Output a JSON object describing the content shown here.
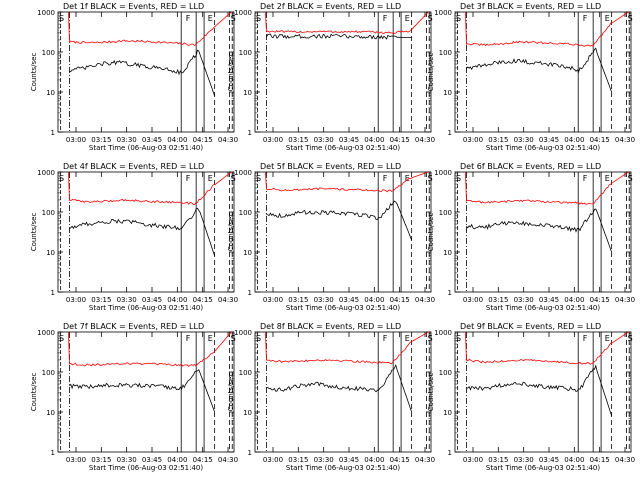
{
  "chart_data": [
    {
      "type": "line",
      "title": "Det  1f BLACK = Events, RED = LLD",
      "xlabel": "Start Time (06-Aug-03 02:51:40)",
      "ylabel": "Counts/sec",
      "xticks": [
        "03:00",
        "03:15",
        "03:30",
        "03:45",
        "04:00",
        "04:15",
        "04:30"
      ],
      "yticks": [
        "1",
        "10",
        "100",
        "1000"
      ],
      "ylim": [
        1,
        1000
      ],
      "ylog": true,
      "markers": [
        "S",
        "F",
        "E",
        "S"
      ],
      "series": [
        {
          "color": "#ff0000",
          "values": [
            180,
            170,
            175,
            190,
            185,
            175,
            165,
            150,
            400,
            1000
          ]
        },
        {
          "color": "#000000",
          "values": [
            35,
            40,
            50,
            55,
            48,
            42,
            38,
            30,
            110,
            8
          ]
        }
      ]
    },
    {
      "type": "line",
      "title": "Det  2f BLACK = Events, RED = LLD",
      "xlabel": "Start Time (06-Aug-03 02:51:40)",
      "ylabel": "Counts/sec",
      "xticks": [
        "03:00",
        "03:15",
        "03:30",
        "03:45",
        "04:00",
        "04:15",
        "04:30"
      ],
      "yticks": [
        "1",
        "10",
        "100",
        "1000"
      ],
      "ylim": [
        1,
        1000
      ],
      "ylog": true,
      "markers": [
        "S",
        "F",
        "E",
        "S"
      ],
      "series": [
        {
          "color": "#ff0000",
          "values": [
            330,
            320,
            320,
            325,
            320,
            320,
            315,
            300,
            340,
            1000
          ]
        },
        {
          "color": "#000000",
          "values": [
            250,
            245,
            245,
            250,
            245,
            240,
            235,
            230
          ]
        }
      ]
    },
    {
      "type": "line",
      "title": "Det  3f BLACK = Events, RED = LLD",
      "xlabel": "Start Time (06-Aug-03 02:51:40)",
      "ylabel": "Counts/sec",
      "xticks": [
        "03:00",
        "03:15",
        "03:30",
        "03:45",
        "04:00",
        "04:15",
        "04:30"
      ],
      "yticks": [
        "1",
        "10",
        "100",
        "1000"
      ],
      "ylim": [
        1,
        1000
      ],
      "ylog": true,
      "markers": [
        "S",
        "F",
        "E",
        "S"
      ],
      "series": [
        {
          "color": "#ff0000",
          "values": [
            160,
            150,
            160,
            180,
            170,
            165,
            155,
            140,
            500,
            1000
          ]
        },
        {
          "color": "#000000",
          "values": [
            40,
            45,
            55,
            60,
            55,
            50,
            45,
            35,
            120,
            10
          ]
        }
      ]
    },
    {
      "type": "line",
      "title": "Det  4f BLACK = Events, RED = LLD",
      "xlabel": "Start Time (06-Aug-03 02:51:40)",
      "ylabel": "Counts/sec",
      "xticks": [
        "03:00",
        "03:15",
        "03:30",
        "03:45",
        "04:00",
        "04:15",
        "04:30"
      ],
      "yticks": [
        "1",
        "10",
        "100",
        "1000"
      ],
      "ylim": [
        1,
        1000
      ],
      "ylog": true,
      "markers": [
        "S",
        "F",
        "E",
        "S"
      ],
      "series": [
        {
          "color": "#ff0000",
          "values": [
            200,
            180,
            185,
            200,
            190,
            180,
            175,
            160,
            450,
            1000
          ]
        },
        {
          "color": "#000000",
          "values": [
            40,
            50,
            55,
            60,
            55,
            48,
            42,
            40,
            130,
            8
          ]
        }
      ]
    },
    {
      "type": "line",
      "title": "Det  5f BLACK = Events, RED = LLD",
      "xlabel": "Start Time (06-Aug-03 02:51:40)",
      "ylabel": "Counts/sec",
      "xticks": [
        "03:00",
        "03:15",
        "03:30",
        "03:45",
        "04:00",
        "04:15",
        "04:30"
      ],
      "yticks": [
        "1",
        "10",
        "100",
        "1000"
      ],
      "ylim": [
        1,
        1000
      ],
      "ylog": true,
      "markers": [
        "S",
        "F",
        "E",
        "S"
      ],
      "series": [
        {
          "color": "#ff0000",
          "values": [
            380,
            350,
            360,
            380,
            370,
            360,
            350,
            330,
            700,
            1000
          ]
        },
        {
          "color": "#000000",
          "values": [
            90,
            80,
            95,
            100,
            95,
            90,
            85,
            70,
            200,
            20
          ]
        }
      ]
    },
    {
      "type": "line",
      "title": "Det  6f BLACK = Events, RED = LLD",
      "xlabel": "Start Time (06-Aug-03 02:51:40)",
      "ylabel": "Counts/sec",
      "xticks": [
        "03:00",
        "03:15",
        "03:30",
        "03:45",
        "04:00",
        "04:15",
        "04:30"
      ],
      "yticks": [
        "1",
        "10",
        "100",
        "1000"
      ],
      "ylim": [
        1,
        1000
      ],
      "ylog": true,
      "markers": [
        "S",
        "F",
        "E",
        "S"
      ],
      "series": [
        {
          "color": "#ff0000",
          "values": [
            190,
            175,
            180,
            195,
            185,
            175,
            170,
            155,
            500,
            1000
          ]
        },
        {
          "color": "#000000",
          "values": [
            45,
            40,
            50,
            55,
            50,
            45,
            40,
            35,
            130,
            10
          ]
        }
      ]
    },
    {
      "type": "line",
      "title": "Det  7f BLACK = Events, RED = LLD",
      "xlabel": "Start Time (06-Aug-03 02:51:40)",
      "ylabel": "Counts/sec",
      "xticks": [
        "03:00",
        "03:15",
        "03:30",
        "03:45",
        "04:00",
        "04:15",
        "04:30"
      ],
      "yticks": [
        "1",
        "10",
        "100",
        "1000"
      ],
      "ylim": [
        1,
        1000
      ],
      "ylog": true,
      "markers": [
        "S",
        "F",
        "E",
        "S"
      ],
      "series": [
        {
          "color": "#ff0000",
          "values": [
            160,
            150,
            155,
            165,
            160,
            155,
            150,
            145,
            300,
            1000
          ]
        },
        {
          "color": "#000000",
          "values": [
            45,
            42,
            45,
            48,
            46,
            44,
            42,
            40,
            120,
            10
          ]
        }
      ]
    },
    {
      "type": "line",
      "title": "Det  8f BLACK = Events, RED = LLD",
      "xlabel": "Start Time (06-Aug-03 02:51:40)",
      "ylabel": "Counts/sec",
      "xticks": [
        "03:00",
        "03:15",
        "03:30",
        "03:45",
        "04:00",
        "04:15",
        "04:30"
      ],
      "yticks": [
        "1",
        "10",
        "100",
        "1000"
      ],
      "ylim": [
        1,
        1000
      ],
      "ylog": true,
      "markers": [
        "S",
        "F",
        "E",
        "S"
      ],
      "series": [
        {
          "color": "#ff0000",
          "values": [
            200,
            180,
            190,
            200,
            195,
            185,
            175,
            165,
            550,
            1000
          ]
        },
        {
          "color": "#000000",
          "values": [
            40,
            35,
            45,
            50,
            45,
            40,
            38,
            35,
            150,
            10
          ]
        }
      ]
    },
    {
      "type": "line",
      "title": "Det  9f BLACK = Events, RED = LLD",
      "xlabel": "Start Time (06-Aug-03 02:51:40)",
      "ylabel": "Counts/sec",
      "xticks": [
        "03:00",
        "03:15",
        "03:30",
        "03:45",
        "04:00",
        "04:15",
        "04:30"
      ],
      "yticks": [
        "1",
        "10",
        "100",
        "1000"
      ],
      "ylim": [
        1,
        1000
      ],
      "ylog": true,
      "markers": [
        "S",
        "F",
        "E",
        "S"
      ],
      "series": [
        {
          "color": "#ff0000",
          "values": [
            200,
            175,
            185,
            200,
            190,
            180,
            170,
            160,
            500,
            1000
          ]
        },
        {
          "color": "#000000",
          "values": [
            40,
            38,
            45,
            55,
            48,
            42,
            40,
            35,
            140,
            8
          ]
        }
      ]
    }
  ]
}
